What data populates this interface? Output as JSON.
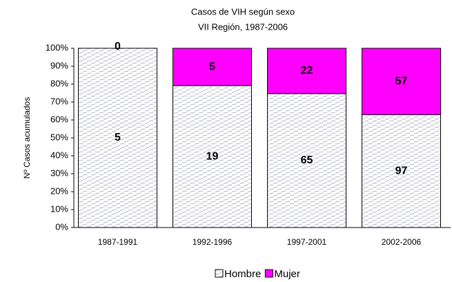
{
  "chart_data": {
    "type": "bar",
    "stacking": "percent",
    "title": "Casos de VIH según sexo",
    "subtitle": "VII Región, 1987-2006",
    "y_label": "Nº Casos acumulados",
    "categories": [
      "1987-1991",
      "1992-1996",
      "1997-2001",
      "2002-2006"
    ],
    "series": [
      {
        "name": "Hombre",
        "color": "#c8c8d8",
        "pattern": "hatch",
        "values": [
          5,
          19,
          65,
          97
        ]
      },
      {
        "name": "Mujer",
        "color": "#ff00ff",
        "values": [
          0,
          5,
          22,
          57
        ]
      }
    ],
    "ylim": [
      0,
      100
    ],
    "yticks": [
      {
        "value": 0,
        "label": "0%"
      },
      {
        "value": 10,
        "label": "10%"
      },
      {
        "value": 20,
        "label": "20%"
      },
      {
        "value": 30,
        "label": "30%"
      },
      {
        "value": 40,
        "label": "40%"
      },
      {
        "value": 50,
        "label": "50%"
      },
      {
        "value": 60,
        "label": "60%"
      },
      {
        "value": 70,
        "label": "70%"
      },
      {
        "value": 80,
        "label": "80%"
      },
      {
        "value": 90,
        "label": "90%"
      },
      {
        "value": 100,
        "label": "100%"
      }
    ],
    "grid": false,
    "legend": "bottom"
  }
}
